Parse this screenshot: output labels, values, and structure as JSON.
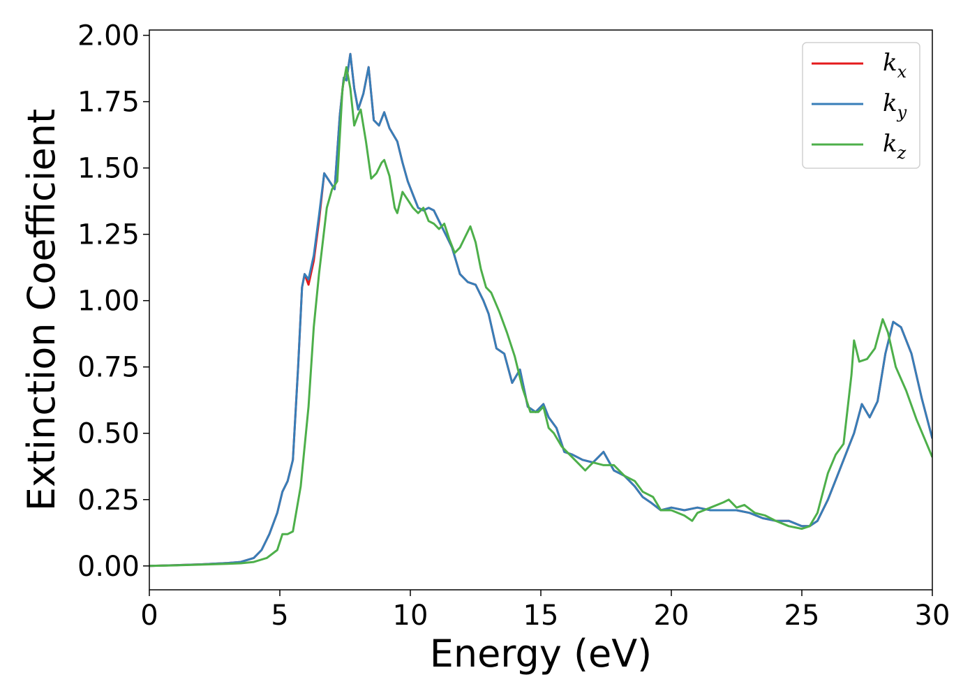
{
  "chart_data": {
    "type": "line",
    "xlabel": "Energy (eV)",
    "ylabel": "Extinction Coefficient",
    "xlim": [
      0,
      30
    ],
    "ylim": [
      -0.09,
      2.02
    ],
    "xticks": [
      0,
      5,
      10,
      15,
      20,
      25,
      30
    ],
    "xtick_labels": [
      "0",
      "5",
      "10",
      "15",
      "20",
      "25",
      "30"
    ],
    "yticks": [
      0.0,
      0.25,
      0.5,
      0.75,
      1.0,
      1.25,
      1.5,
      1.75,
      2.0
    ],
    "ytick_labels": [
      "0.00",
      "0.25",
      "0.50",
      "0.75",
      "1.00",
      "1.25",
      "1.50",
      "1.75",
      "2.00"
    ],
    "grid": false,
    "legend_position": "top-right",
    "series": [
      {
        "name": "k",
        "subscript": "x",
        "color": "#e41a1c",
        "points": [
          [
            0,
            0
          ],
          [
            1,
            0.003
          ],
          [
            2,
            0.006
          ],
          [
            3,
            0.011
          ],
          [
            3.5,
            0.015
          ],
          [
            4,
            0.03
          ],
          [
            4.3,
            0.06
          ],
          [
            4.6,
            0.12
          ],
          [
            4.9,
            0.2
          ],
          [
            5.1,
            0.28
          ],
          [
            5.3,
            0.32
          ],
          [
            5.5,
            0.4
          ],
          [
            5.7,
            0.75
          ],
          [
            5.85,
            1.05
          ],
          [
            5.95,
            1.1
          ],
          [
            6.1,
            1.06
          ],
          [
            6.3,
            1.15
          ],
          [
            6.5,
            1.3
          ],
          [
            6.7,
            1.48
          ],
          [
            6.9,
            1.45
          ],
          [
            7.1,
            1.42
          ],
          [
            7.3,
            1.7
          ],
          [
            7.45,
            1.84
          ],
          [
            7.55,
            1.83
          ],
          [
            7.7,
            1.93
          ],
          [
            7.85,
            1.8
          ],
          [
            8.0,
            1.72
          ],
          [
            8.2,
            1.78
          ],
          [
            8.4,
            1.88
          ],
          [
            8.6,
            1.68
          ],
          [
            8.8,
            1.66
          ],
          [
            9.0,
            1.71
          ],
          [
            9.2,
            1.65
          ],
          [
            9.5,
            1.6
          ],
          [
            9.7,
            1.52
          ],
          [
            9.9,
            1.45
          ],
          [
            10.1,
            1.4
          ],
          [
            10.3,
            1.35
          ],
          [
            10.5,
            1.34
          ],
          [
            10.7,
            1.35
          ],
          [
            10.9,
            1.34
          ],
          [
            11.1,
            1.3
          ],
          [
            11.4,
            1.24
          ],
          [
            11.6,
            1.2
          ],
          [
            11.9,
            1.1
          ],
          [
            12.2,
            1.07
          ],
          [
            12.5,
            1.06
          ],
          [
            12.8,
            1.0
          ],
          [
            13.0,
            0.95
          ],
          [
            13.3,
            0.82
          ],
          [
            13.6,
            0.8
          ],
          [
            13.9,
            0.69
          ],
          [
            14.2,
            0.74
          ],
          [
            14.5,
            0.6
          ],
          [
            14.8,
            0.58
          ],
          [
            15.1,
            0.61
          ],
          [
            15.3,
            0.56
          ],
          [
            15.6,
            0.52
          ],
          [
            15.9,
            0.43
          ],
          [
            16.2,
            0.42
          ],
          [
            16.6,
            0.4
          ],
          [
            17.0,
            0.39
          ],
          [
            17.4,
            0.43
          ],
          [
            17.8,
            0.36
          ],
          [
            18.2,
            0.34
          ],
          [
            18.6,
            0.3
          ],
          [
            18.9,
            0.26
          ],
          [
            19.2,
            0.24
          ],
          [
            19.6,
            0.21
          ],
          [
            20.0,
            0.22
          ],
          [
            20.5,
            0.21
          ],
          [
            21.0,
            0.22
          ],
          [
            21.5,
            0.21
          ],
          [
            22.0,
            0.21
          ],
          [
            22.5,
            0.21
          ],
          [
            23.0,
            0.2
          ],
          [
            23.5,
            0.18
          ],
          [
            24.0,
            0.17
          ],
          [
            24.5,
            0.17
          ],
          [
            25.0,
            0.15
          ],
          [
            25.3,
            0.15
          ],
          [
            25.6,
            0.17
          ],
          [
            26.0,
            0.25
          ],
          [
            26.4,
            0.35
          ],
          [
            26.8,
            0.45
          ],
          [
            27.0,
            0.5
          ],
          [
            27.3,
            0.61
          ],
          [
            27.6,
            0.56
          ],
          [
            27.9,
            0.62
          ],
          [
            28.2,
            0.8
          ],
          [
            28.5,
            0.92
          ],
          [
            28.8,
            0.9
          ],
          [
            29.2,
            0.8
          ],
          [
            29.6,
            0.63
          ],
          [
            30.0,
            0.48
          ]
        ]
      },
      {
        "name": "k",
        "subscript": "y",
        "color": "#377eb8",
        "points": [
          [
            0,
            0
          ],
          [
            1,
            0.003
          ],
          [
            2,
            0.006
          ],
          [
            3,
            0.011
          ],
          [
            3.5,
            0.015
          ],
          [
            4,
            0.03
          ],
          [
            4.3,
            0.06
          ],
          [
            4.6,
            0.12
          ],
          [
            4.9,
            0.2
          ],
          [
            5.1,
            0.28
          ],
          [
            5.3,
            0.32
          ],
          [
            5.5,
            0.4
          ],
          [
            5.7,
            0.75
          ],
          [
            5.85,
            1.05
          ],
          [
            5.95,
            1.1
          ],
          [
            6.1,
            1.08
          ],
          [
            6.3,
            1.17
          ],
          [
            6.5,
            1.32
          ],
          [
            6.7,
            1.48
          ],
          [
            6.9,
            1.45
          ],
          [
            7.1,
            1.42
          ],
          [
            7.3,
            1.7
          ],
          [
            7.45,
            1.84
          ],
          [
            7.55,
            1.83
          ],
          [
            7.7,
            1.93
          ],
          [
            7.85,
            1.8
          ],
          [
            8.0,
            1.72
          ],
          [
            8.2,
            1.78
          ],
          [
            8.4,
            1.88
          ],
          [
            8.6,
            1.68
          ],
          [
            8.8,
            1.66
          ],
          [
            9.0,
            1.71
          ],
          [
            9.2,
            1.65
          ],
          [
            9.5,
            1.6
          ],
          [
            9.7,
            1.52
          ],
          [
            9.9,
            1.45
          ],
          [
            10.1,
            1.4
          ],
          [
            10.3,
            1.35
          ],
          [
            10.5,
            1.34
          ],
          [
            10.7,
            1.35
          ],
          [
            10.9,
            1.34
          ],
          [
            11.1,
            1.3
          ],
          [
            11.4,
            1.24
          ],
          [
            11.6,
            1.2
          ],
          [
            11.9,
            1.1
          ],
          [
            12.2,
            1.07
          ],
          [
            12.5,
            1.06
          ],
          [
            12.8,
            1.0
          ],
          [
            13.0,
            0.95
          ],
          [
            13.3,
            0.82
          ],
          [
            13.6,
            0.8
          ],
          [
            13.9,
            0.69
          ],
          [
            14.2,
            0.74
          ],
          [
            14.5,
            0.6
          ],
          [
            14.8,
            0.58
          ],
          [
            15.1,
            0.61
          ],
          [
            15.3,
            0.56
          ],
          [
            15.6,
            0.52
          ],
          [
            15.9,
            0.43
          ],
          [
            16.2,
            0.42
          ],
          [
            16.6,
            0.4
          ],
          [
            17.0,
            0.39
          ],
          [
            17.4,
            0.43
          ],
          [
            17.8,
            0.36
          ],
          [
            18.2,
            0.34
          ],
          [
            18.6,
            0.3
          ],
          [
            18.9,
            0.26
          ],
          [
            19.2,
            0.24
          ],
          [
            19.6,
            0.21
          ],
          [
            20.0,
            0.22
          ],
          [
            20.5,
            0.21
          ],
          [
            21.0,
            0.22
          ],
          [
            21.5,
            0.21
          ],
          [
            22.0,
            0.21
          ],
          [
            22.5,
            0.21
          ],
          [
            23.0,
            0.2
          ],
          [
            23.5,
            0.18
          ],
          [
            24.0,
            0.17
          ],
          [
            24.5,
            0.17
          ],
          [
            25.0,
            0.15
          ],
          [
            25.3,
            0.15
          ],
          [
            25.6,
            0.17
          ],
          [
            26.0,
            0.25
          ],
          [
            26.4,
            0.35
          ],
          [
            26.8,
            0.45
          ],
          [
            27.0,
            0.5
          ],
          [
            27.3,
            0.61
          ],
          [
            27.6,
            0.56
          ],
          [
            27.9,
            0.62
          ],
          [
            28.2,
            0.8
          ],
          [
            28.5,
            0.92
          ],
          [
            28.8,
            0.9
          ],
          [
            29.2,
            0.8
          ],
          [
            29.6,
            0.63
          ],
          [
            30.0,
            0.48
          ]
        ]
      },
      {
        "name": "k",
        "subscript": "z",
        "color": "#4daf4a",
        "points": [
          [
            0,
            0
          ],
          [
            1,
            0.002
          ],
          [
            2,
            0.005
          ],
          [
            3,
            0.008
          ],
          [
            3.5,
            0.01
          ],
          [
            4,
            0.015
          ],
          [
            4.5,
            0.03
          ],
          [
            4.9,
            0.06
          ],
          [
            5.1,
            0.12
          ],
          [
            5.3,
            0.12
          ],
          [
            5.5,
            0.13
          ],
          [
            5.8,
            0.3
          ],
          [
            6.1,
            0.6
          ],
          [
            6.3,
            0.9
          ],
          [
            6.5,
            1.1
          ],
          [
            6.8,
            1.35
          ],
          [
            7.0,
            1.42
          ],
          [
            7.2,
            1.45
          ],
          [
            7.4,
            1.8
          ],
          [
            7.55,
            1.88
          ],
          [
            7.7,
            1.8
          ],
          [
            7.85,
            1.66
          ],
          [
            8.0,
            1.7
          ],
          [
            8.1,
            1.72
          ],
          [
            8.3,
            1.6
          ],
          [
            8.5,
            1.46
          ],
          [
            8.7,
            1.48
          ],
          [
            8.9,
            1.52
          ],
          [
            9.0,
            1.53
          ],
          [
            9.2,
            1.47
          ],
          [
            9.4,
            1.35
          ],
          [
            9.5,
            1.33
          ],
          [
            9.7,
            1.41
          ],
          [
            9.9,
            1.38
          ],
          [
            10.1,
            1.35
          ],
          [
            10.3,
            1.33
          ],
          [
            10.5,
            1.35
          ],
          [
            10.7,
            1.3
          ],
          [
            10.9,
            1.29
          ],
          [
            11.1,
            1.27
          ],
          [
            11.3,
            1.29
          ],
          [
            11.5,
            1.23
          ],
          [
            11.7,
            1.18
          ],
          [
            11.9,
            1.2
          ],
          [
            12.1,
            1.24
          ],
          [
            12.3,
            1.28
          ],
          [
            12.5,
            1.22
          ],
          [
            12.7,
            1.12
          ],
          [
            12.9,
            1.05
          ],
          [
            13.1,
            1.03
          ],
          [
            13.4,
            0.96
          ],
          [
            13.7,
            0.88
          ],
          [
            14.0,
            0.79
          ],
          [
            14.3,
            0.67
          ],
          [
            14.6,
            0.58
          ],
          [
            14.9,
            0.58
          ],
          [
            15.1,
            0.6
          ],
          [
            15.3,
            0.52
          ],
          [
            15.5,
            0.5
          ],
          [
            15.8,
            0.45
          ],
          [
            16.1,
            0.42
          ],
          [
            16.4,
            0.39
          ],
          [
            16.7,
            0.36
          ],
          [
            17.0,
            0.39
          ],
          [
            17.4,
            0.38
          ],
          [
            17.8,
            0.38
          ],
          [
            18.2,
            0.34
          ],
          [
            18.6,
            0.32
          ],
          [
            18.9,
            0.28
          ],
          [
            19.3,
            0.26
          ],
          [
            19.6,
            0.21
          ],
          [
            20.0,
            0.21
          ],
          [
            20.5,
            0.19
          ],
          [
            20.8,
            0.17
          ],
          [
            21.0,
            0.2
          ],
          [
            21.5,
            0.22
          ],
          [
            22.0,
            0.24
          ],
          [
            22.2,
            0.25
          ],
          [
            22.5,
            0.22
          ],
          [
            22.8,
            0.23
          ],
          [
            23.2,
            0.2
          ],
          [
            23.6,
            0.19
          ],
          [
            24.0,
            0.17
          ],
          [
            24.5,
            0.15
          ],
          [
            25.0,
            0.14
          ],
          [
            25.3,
            0.15
          ],
          [
            25.6,
            0.2
          ],
          [
            26.0,
            0.35
          ],
          [
            26.3,
            0.42
          ],
          [
            26.6,
            0.46
          ],
          [
            26.9,
            0.72
          ],
          [
            27.0,
            0.85
          ],
          [
            27.2,
            0.77
          ],
          [
            27.5,
            0.78
          ],
          [
            27.8,
            0.82
          ],
          [
            28.1,
            0.93
          ],
          [
            28.3,
            0.88
          ],
          [
            28.6,
            0.75
          ],
          [
            29.0,
            0.66
          ],
          [
            29.4,
            0.55
          ],
          [
            29.7,
            0.48
          ],
          [
            30.0,
            0.41
          ]
        ]
      }
    ]
  }
}
